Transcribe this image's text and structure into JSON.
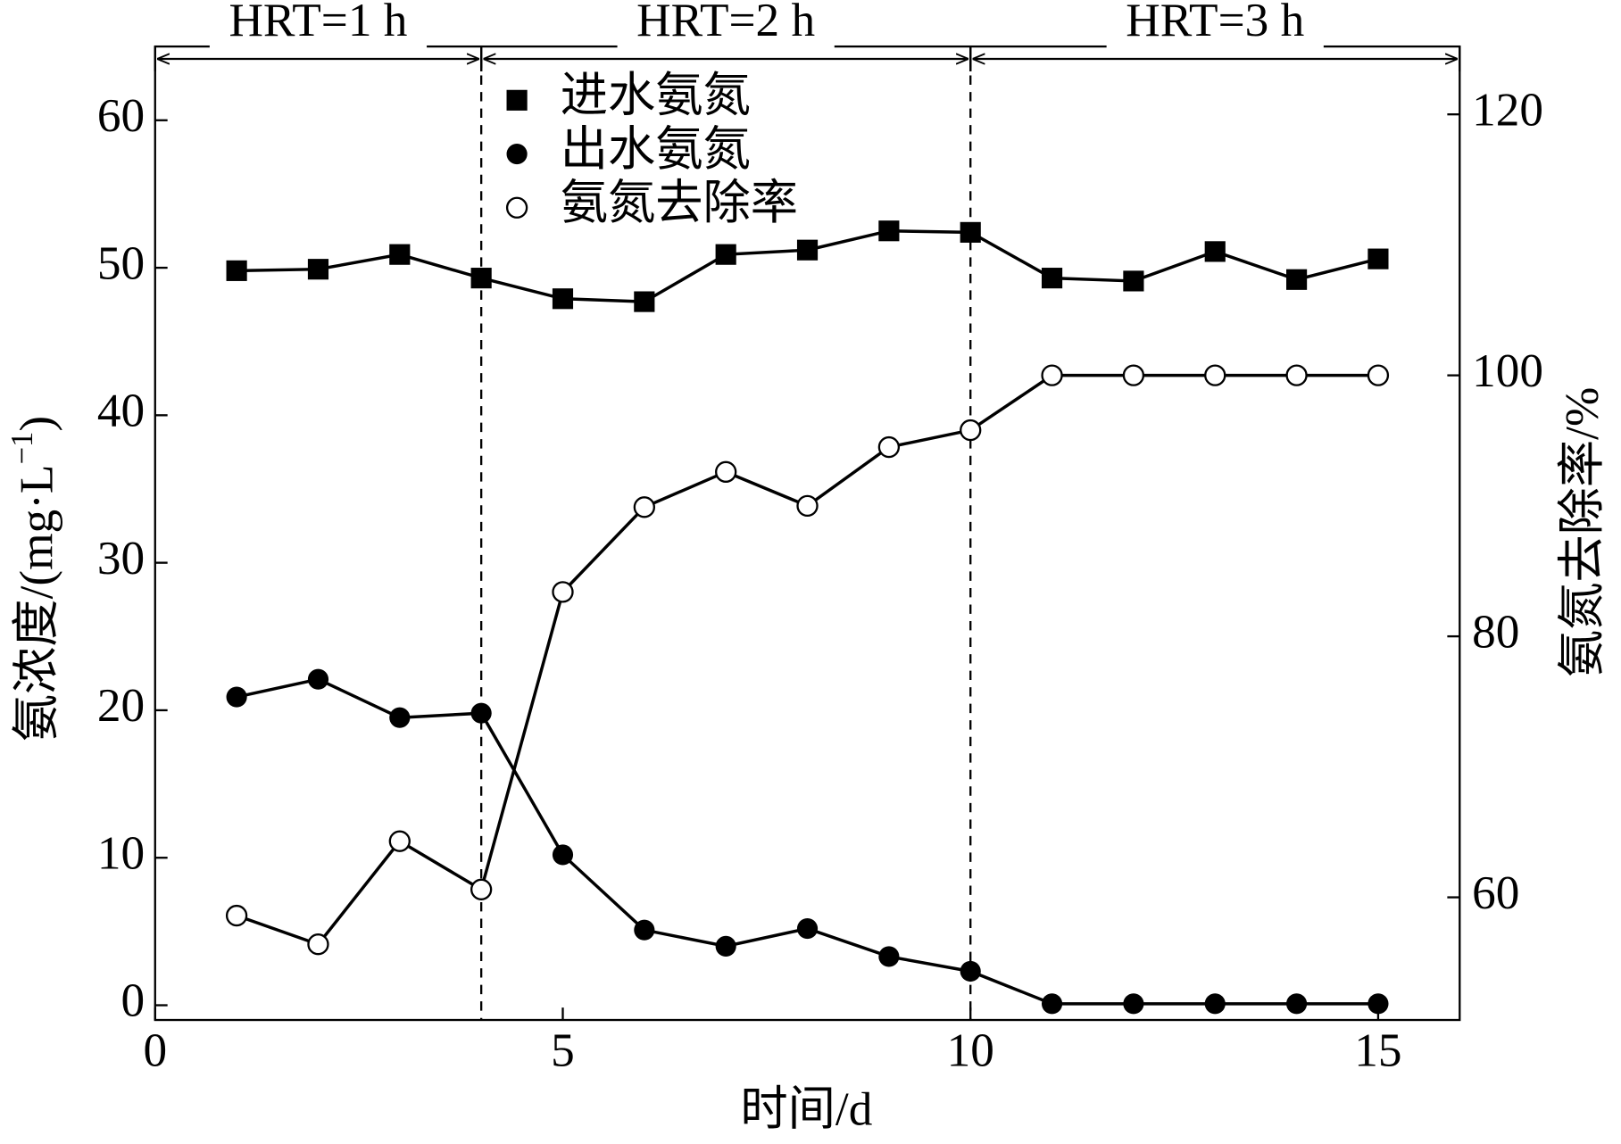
{
  "chart_data": {
    "type": "line",
    "x_label": "时间/d",
    "y_label": {
      "text": "氨浓度/(mg·L",
      "sup": "−1",
      "close": ")"
    },
    "y2_label": "氨氮去除率/%",
    "xlim": [
      0,
      16
    ],
    "xticks": [
      0,
      5,
      10,
      15
    ],
    "ylim": [
      -1,
      65
    ],
    "yticks": [
      0,
      10,
      20,
      30,
      40,
      50,
      60
    ],
    "y2lim": [
      50.6,
      125.2
    ],
    "y2ticks": [
      60,
      80,
      100,
      120
    ],
    "x": [
      1,
      2,
      3,
      4,
      5,
      6,
      7,
      8,
      9,
      10,
      11,
      12,
      13,
      14,
      15
    ],
    "legend": "upper-center",
    "series": [
      {
        "name": "进水氨氮",
        "color": "#000000",
        "marker": "square",
        "values": [
          49.8,
          49.9,
          50.9,
          49.3,
          47.9,
          47.7,
          50.9,
          51.2,
          52.5,
          52.4,
          49.3,
          49.1,
          51.1,
          49.2,
          50.6
        ]
      },
      {
        "name": "出水氨氮",
        "color": "#000000",
        "marker": "circle",
        "values": [
          20.9,
          22.1,
          19.5,
          19.8,
          10.2,
          5.1,
          4.0,
          5.2,
          3.3,
          2.3,
          0.1,
          0.1,
          0.1,
          0.1,
          0.1
        ]
      },
      {
        "name": "氨氮去除率",
        "color": "#000000",
        "marker": "open-circle",
        "axis": "y2",
        "values": [
          58.6,
          56.4,
          64.3,
          60.6,
          83.4,
          89.9,
          92.6,
          90.0,
          94.5,
          95.8,
          100,
          100,
          100,
          100,
          100
        ]
      }
    ],
    "annotations": [
      {
        "text": "HRT=1 h",
        "x": [
          0,
          4
        ]
      },
      {
        "text": "HRT=2 h",
        "x": [
          4,
          10
        ]
      },
      {
        "text": "HRT=3 h",
        "x": [
          10,
          16
        ]
      }
    ]
  }
}
